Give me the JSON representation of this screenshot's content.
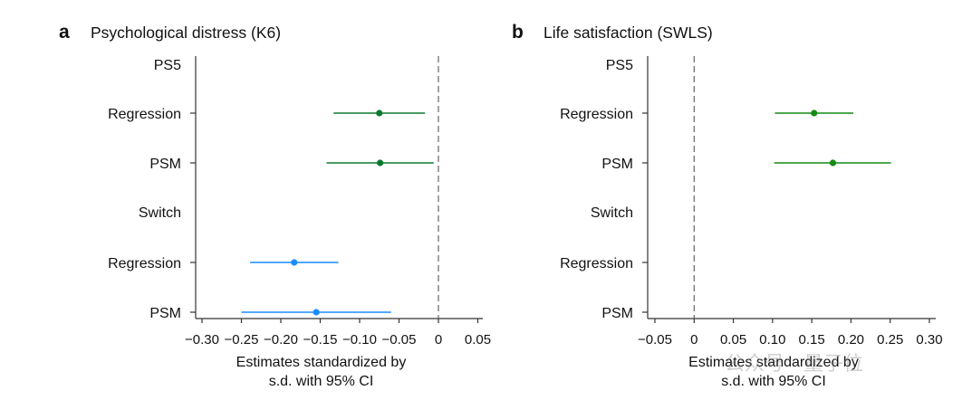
{
  "chart_data": [
    {
      "type": "forest",
      "panel_letter": "a",
      "title": "Psychological distress (K6)",
      "xlabel_line1": "Estimates standardized by",
      "xlabel_line2": "s.d. with 95% CI",
      "xlim": [
        -0.31,
        0.06
      ],
      "xticks": [
        -0.3,
        -0.25,
        -0.2,
        -0.15,
        -0.1,
        -0.05,
        0,
        0.05
      ],
      "xtick_labels": [
        "−0.30",
        "−0.25",
        "−0.20",
        "−0.15",
        "−0.10",
        "−0.05",
        "0",
        "0.05"
      ],
      "reference_line": 0,
      "rows": [
        {
          "label": "PS5",
          "estimate": null,
          "ci": null,
          "color": null
        },
        {
          "label": "Regression",
          "estimate": -0.075,
          "ci": [
            -0.133,
            -0.017
          ],
          "color": "#0b7a2e"
        },
        {
          "label": "PSM",
          "estimate": -0.074,
          "ci": [
            -0.142,
            -0.006
          ],
          "color": "#0b7a2e"
        },
        {
          "label": "Switch",
          "estimate": null,
          "ci": null,
          "color": null
        },
        {
          "label": "Regression",
          "estimate": -0.183,
          "ci": [
            -0.239,
            -0.127
          ],
          "color": "#1a8cff"
        },
        {
          "label": "PSM",
          "estimate": -0.155,
          "ci": [
            -0.25,
            -0.06
          ],
          "color": "#1a8cff"
        }
      ]
    },
    {
      "type": "forest",
      "panel_letter": "b",
      "title": "Life satisfaction (SWLS)",
      "xlabel_line1": "Estimates standardized by",
      "xlabel_line2": "s.d. with 95% CI",
      "xlim": [
        -0.058,
        0.31
      ],
      "xticks": [
        -0.05,
        0,
        0.05,
        0.1,
        0.15,
        0.2,
        0.25,
        0.3
      ],
      "xtick_labels": [
        "−0.05",
        "0",
        "0.05",
        "0.10",
        "0.15",
        "0.20",
        "0.25",
        "0.30"
      ],
      "reference_line": 0,
      "rows": [
        {
          "label": "PS5",
          "estimate": null,
          "ci": null,
          "color": null
        },
        {
          "label": "Regression",
          "estimate": 0.153,
          "ci": [
            0.103,
            0.203
          ],
          "color": "#138a13"
        },
        {
          "label": "PSM",
          "estimate": 0.177,
          "ci": [
            0.102,
            0.251
          ],
          "color": "#138a13"
        },
        {
          "label": "Switch",
          "estimate": null,
          "ci": null,
          "color": null
        },
        {
          "label": "Regression",
          "estimate": null,
          "ci": null,
          "color": null
        },
        {
          "label": "PSM",
          "estimate": null,
          "ci": null,
          "color": null
        }
      ]
    }
  ],
  "watermark": "公众号 · 量子位"
}
